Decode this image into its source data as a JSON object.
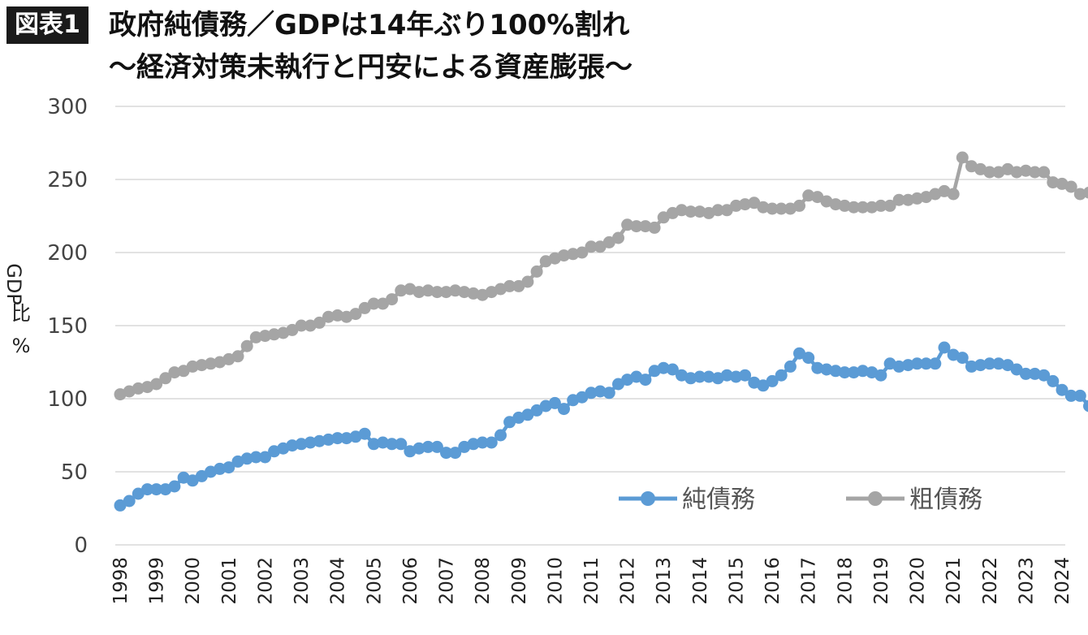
{
  "header": {
    "badge": "図表1",
    "title": "政府純債務／GDPは14年ぶり100%割れ",
    "subtitle": "～経済対策未執行と円安による資産膨張～"
  },
  "chart_data": {
    "type": "line",
    "title": "政府純債務／GDPは14年ぶり100%割れ",
    "subtitle": "～経済対策未執行と円安による資産膨張～",
    "ylabel_chars": [
      "GDP",
      "比",
      "%"
    ],
    "xlabel": "",
    "ylim": [
      0,
      300
    ],
    "yticks": [
      0,
      50,
      100,
      150,
      200,
      250,
      300
    ],
    "x_tick_labels": [
      "1998",
      "1999",
      "2000",
      "2001",
      "2002",
      "2003",
      "2004",
      "2005",
      "2006",
      "2007",
      "2008",
      "2009",
      "2010",
      "2011",
      "2012",
      "2013",
      "2014",
      "2015",
      "2016",
      "2017",
      "2018",
      "2019",
      "2020",
      "2021",
      "2022",
      "2023",
      "2024"
    ],
    "x_start": 1998.0,
    "x_step": 0.25,
    "grid": true,
    "legend_position": "bottom-right",
    "series": [
      {
        "name": "純債務",
        "color": "#5b9bd5",
        "values": [
          27,
          30,
          35,
          38,
          38,
          38,
          40,
          46,
          44,
          47,
          50,
          52,
          53,
          57,
          59,
          60,
          60,
          64,
          66,
          68,
          69,
          70,
          71,
          72,
          73,
          73,
          74,
          76,
          69,
          70,
          69,
          69,
          64,
          66,
          67,
          67,
          63,
          63,
          67,
          69,
          70,
          70,
          75,
          84,
          87,
          89,
          92,
          95,
          97,
          93,
          99,
          101,
          104,
          105,
          104,
          110,
          113,
          115,
          113,
          119,
          121,
          120,
          116,
          114,
          115,
          115,
          114,
          116,
          115,
          116,
          111,
          109,
          112,
          116,
          122,
          131,
          128,
          121,
          120,
          119,
          118,
          118,
          119,
          118,
          116,
          124,
          122,
          123,
          124,
          124,
          124,
          135,
          130,
          128,
          122,
          123,
          124,
          124,
          123,
          120,
          117,
          117,
          116,
          112,
          106,
          102,
          102,
          95
        ]
      },
      {
        "name": "粗債務",
        "color": "#a5a5a5",
        "values": [
          103,
          105,
          107,
          108,
          110,
          114,
          118,
          119,
          122,
          123,
          124,
          125,
          127,
          129,
          136,
          142,
          143,
          144,
          145,
          147,
          150,
          150,
          152,
          156,
          157,
          156,
          158,
          162,
          165,
          165,
          168,
          174,
          175,
          173,
          174,
          173,
          173,
          174,
          173,
          172,
          171,
          173,
          175,
          177,
          177,
          180,
          187,
          194,
          196,
          198,
          199,
          200,
          204,
          204,
          207,
          210,
          219,
          218,
          218,
          217,
          224,
          227,
          229,
          228,
          228,
          227,
          229,
          229,
          232,
          233,
          234,
          231,
          230,
          230,
          230,
          232,
          239,
          238,
          235,
          233,
          232,
          231,
          231,
          231,
          232,
          232,
          236,
          236,
          237,
          238,
          240,
          242,
          240,
          265,
          259,
          257,
          255,
          255,
          257,
          255,
          256,
          255,
          255,
          248,
          247,
          245,
          240,
          241,
          241
        ]
      }
    ]
  }
}
